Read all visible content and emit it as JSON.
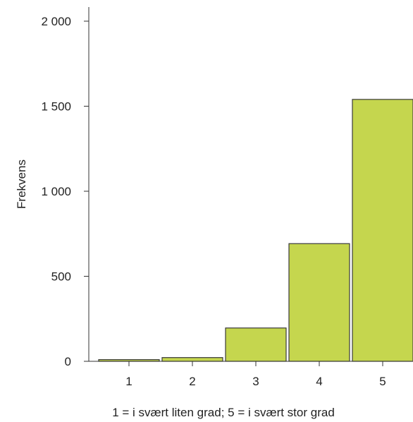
{
  "chart_data": {
    "type": "bar",
    "categories": [
      "1",
      "2",
      "3",
      "4",
      "5"
    ],
    "values": [
      10,
      22,
      196,
      692,
      1540
    ],
    "xlabel": "1 = i svært liten grad; 5 = i svært stor grad",
    "ylabel": "Frekvens",
    "ylim": [
      0,
      2000
    ],
    "yticks": [
      0,
      500,
      1000,
      1500,
      2000
    ],
    "ytick_labels": [
      "0",
      "500",
      "1 000",
      "1 500",
      "2 000"
    ],
    "grid": false,
    "legend": "none",
    "bar_color": "#c5d64e",
    "bar_edge_color": "#3a3a3a"
  }
}
